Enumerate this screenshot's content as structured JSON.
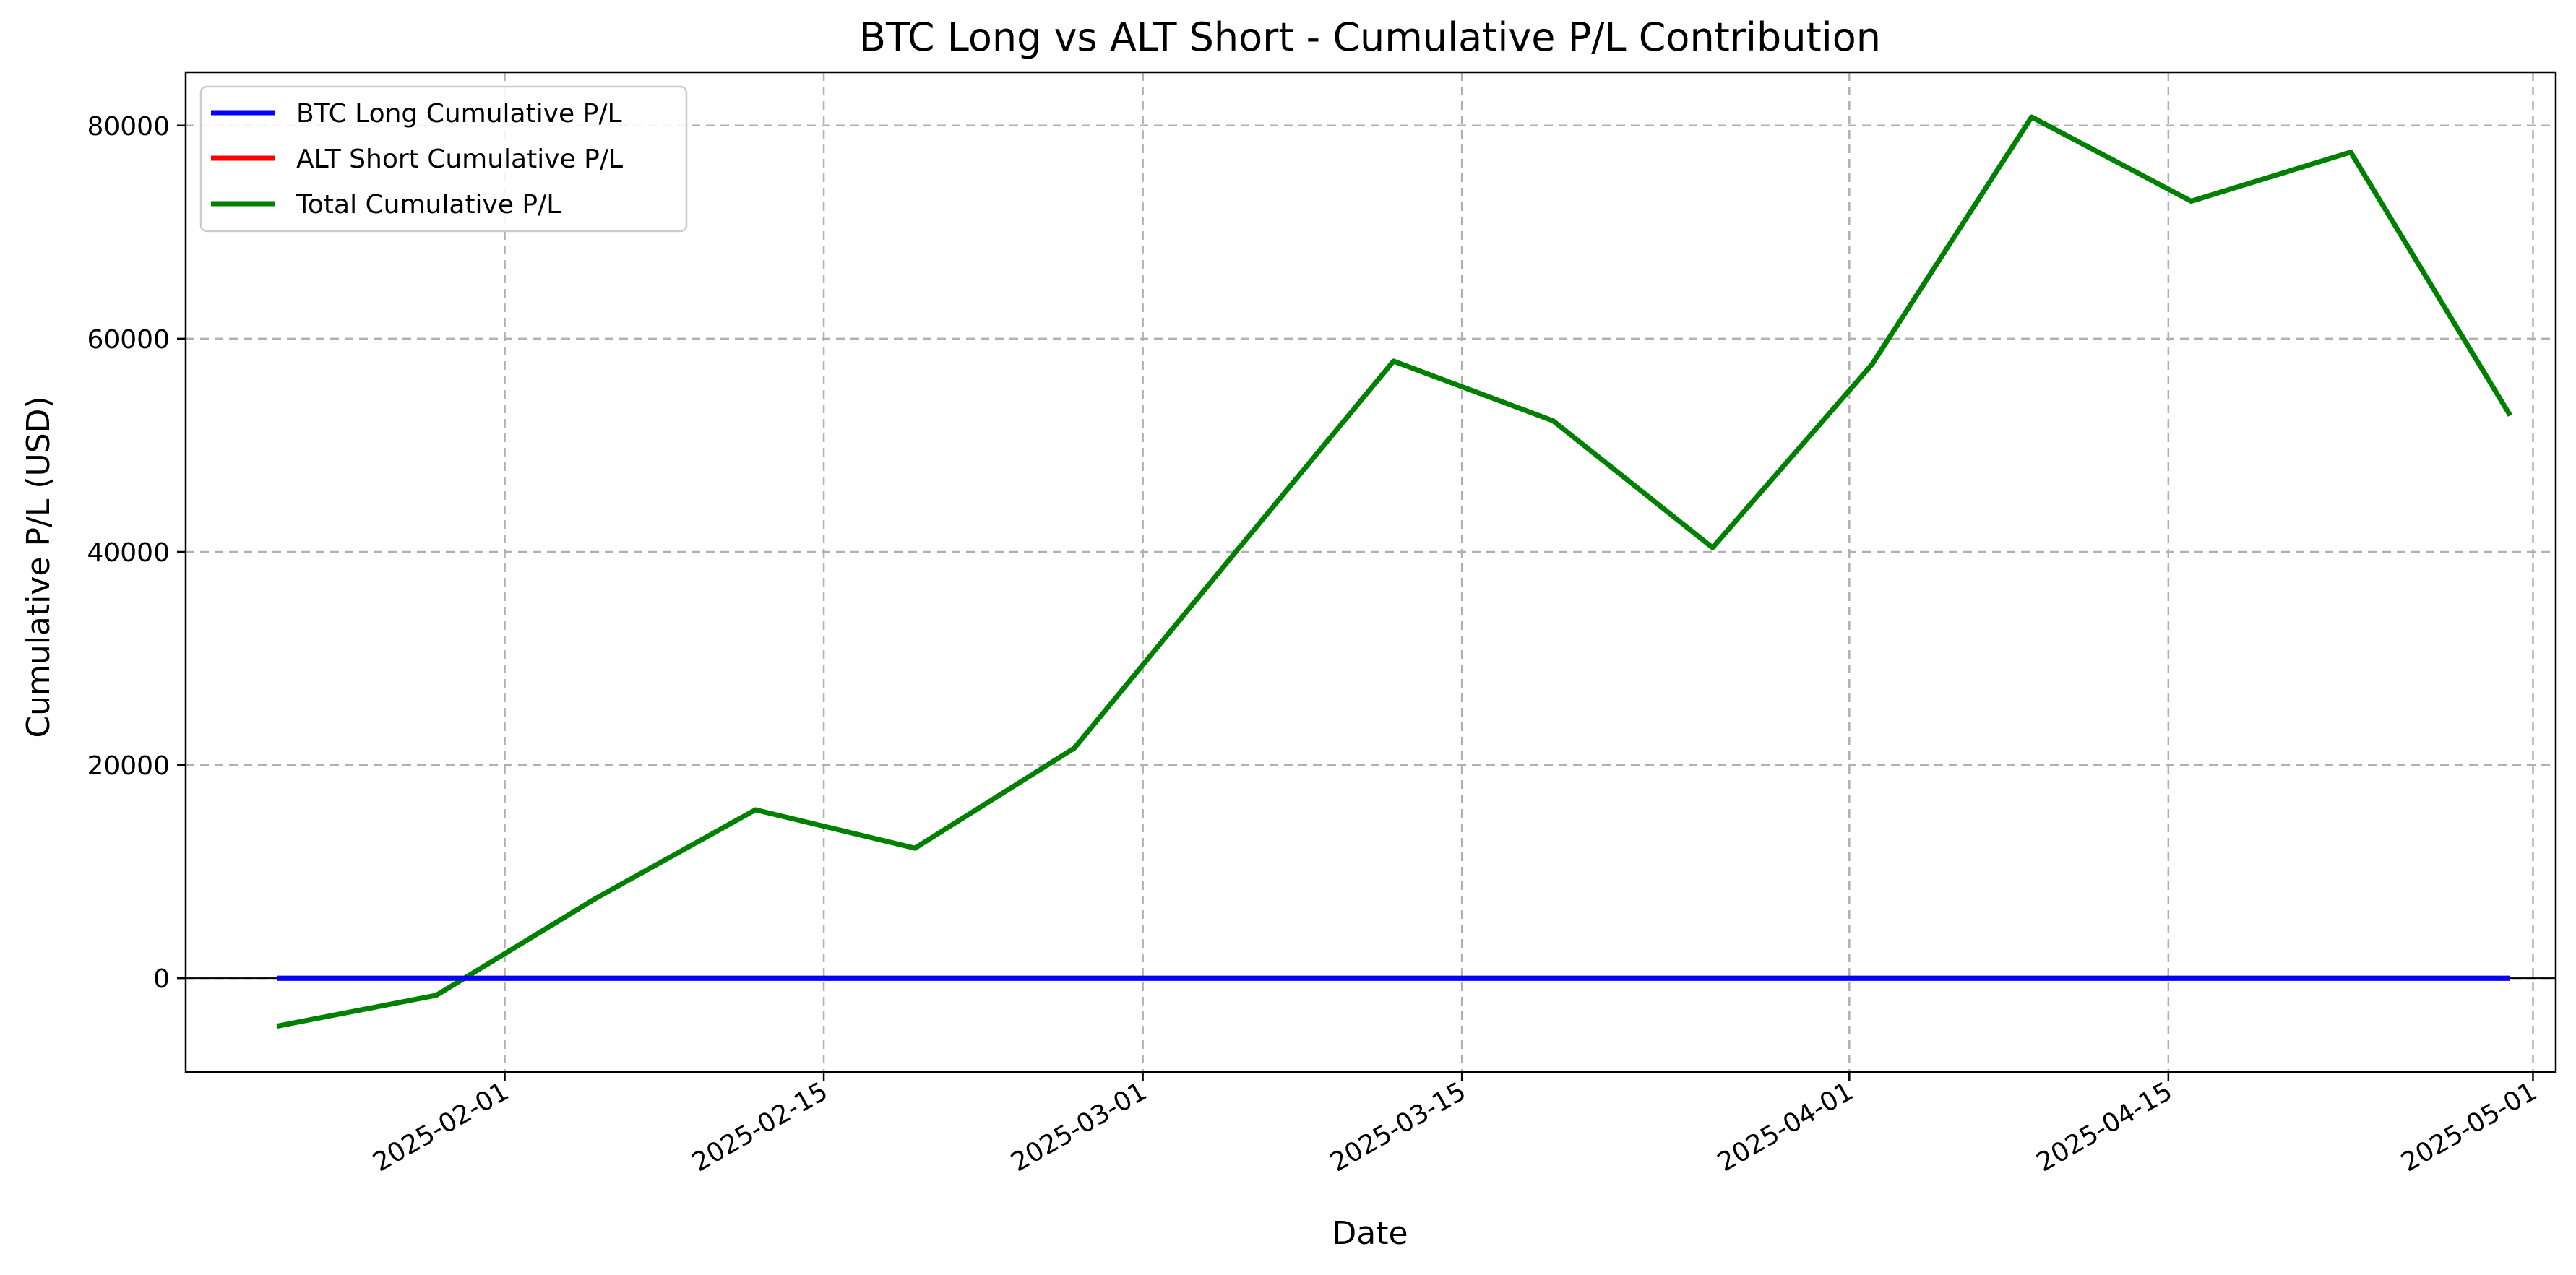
{
  "chart_data": {
    "type": "line",
    "title": "BTC Long vs ALT Short - Cumulative P/L Contribution",
    "xlabel": "Date",
    "ylabel": "Cumulative P/L (USD)",
    "x_type": "date",
    "xlim": [
      "2025-01-18",
      "2025-05-02"
    ],
    "ylim": [
      -8800,
      85000
    ],
    "x_ticks": [
      "2025-02-01",
      "2025-02-15",
      "2025-03-01",
      "2025-03-15",
      "2025-04-01",
      "2025-04-15",
      "2025-05-01"
    ],
    "y_ticks": [
      0,
      20000,
      40000,
      60000,
      80000
    ],
    "x": [
      "2025-01-22",
      "2025-01-29",
      "2025-02-05",
      "2025-02-12",
      "2025-02-19",
      "2025-02-26",
      "2025-03-05",
      "2025-03-12",
      "2025-03-19",
      "2025-03-26",
      "2025-04-02",
      "2025-04-09",
      "2025-04-16",
      "2025-04-23",
      "2025-04-30"
    ],
    "series": [
      {
        "name": "BTC Long Cumulative P/L",
        "color": "#0000ff",
        "values": [
          0,
          0,
          0,
          0,
          0,
          0,
          0,
          0,
          0,
          0,
          0,
          0,
          0,
          0,
          0
        ]
      },
      {
        "name": "ALT Short Cumulative P/L",
        "color": "#ff0000",
        "values": [
          0,
          0,
          0,
          0,
          0,
          0,
          0,
          0,
          0,
          0,
          0,
          0,
          0,
          0,
          0
        ]
      },
      {
        "name": "Total Cumulative P/L",
        "color": "#008000",
        "values": [
          -4500,
          -1600,
          7500,
          15800,
          12200,
          21600,
          39800,
          57900,
          52300,
          40400,
          57600,
          80800,
          72900,
          77500,
          52800
        ]
      }
    ],
    "grid": true,
    "legend_position": "upper-left",
    "zero_line": true
  }
}
